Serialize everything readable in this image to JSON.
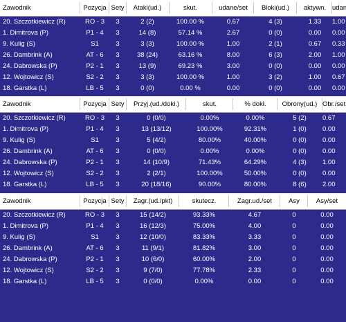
{
  "colors": {
    "background": "#2d2a8c",
    "header_bg": "#ffffff",
    "text": "#ffffff"
  },
  "attack": {
    "headers": [
      "Zawodnik",
      "Pozycja",
      "Sety",
      "Ataki(ud.)",
      "skut.",
      "udane/set",
      "Bloki(ud.)",
      "aktywn.",
      "udane/set"
    ],
    "rows": [
      [
        "20. Szczotkiewicz (R)",
        "RO - 3",
        "3",
        "2 (2)",
        "100.00 %",
        "0.67",
        "4 (3)",
        "1.33",
        "1.00"
      ],
      [
        "1. Dimitrova (P)",
        "P1 - 4",
        "3",
        "14 (8)",
        "57.14 %",
        "2.67",
        "0 (0)",
        "0.00",
        "0.00"
      ],
      [
        "9. Kulig (S)",
        "S1",
        "3",
        "3 (3)",
        "100.00 %",
        "1.00",
        "2 (1)",
        "0.67",
        "0.33"
      ],
      [
        "26. Dambrink (A)",
        "AT - 6",
        "3",
        "38 (24)",
        "63.16 %",
        "8.00",
        "6 (3)",
        "2.00",
        "1.00"
      ],
      [
        "24. Dabrowska (P)",
        "P2 - 1",
        "3",
        "13 (9)",
        "69.23 %",
        "3.00",
        "0 (0)",
        "0.00",
        "0.00"
      ],
      [
        "12. Wojtowicz (S)",
        "S2 - 2",
        "3",
        "3 (3)",
        "100.00 %",
        "1.00",
        "3 (2)",
        "1.00",
        "0.67"
      ],
      [
        "18. Garstka (L)",
        "LB - 5",
        "3",
        "0 (0)",
        "0.00 %",
        "0.00",
        "0 (0)",
        "0.00",
        "0.00"
      ]
    ]
  },
  "reception": {
    "headers": [
      "Zawodnik",
      "Pozycja",
      "Sety",
      "Przyj.(ud./dokł.)",
      "skut.",
      "% dokł.",
      "Obrony(ud.)",
      "Obr./set"
    ],
    "rows": [
      [
        "20. Szczotkiewicz (R)",
        "RO - 3",
        "3",
        "0 (0/0)",
        "0.00%",
        "0.00%",
        "5 (2)",
        "0.67"
      ],
      [
        "1. Dimitrova (P)",
        "P1 - 4",
        "3",
        "13 (13/12)",
        "100.00%",
        "92.31%",
        "1 (0)",
        "0.00"
      ],
      [
        "9. Kulig (S)",
        "S1",
        "3",
        "5 (4/2)",
        "80.00%",
        "40.00%",
        "0 (0)",
        "0.00"
      ],
      [
        "26. Dambrink (A)",
        "AT - 6",
        "3",
        "0 (0/0)",
        "0.00%",
        "0.00%",
        "0 (0)",
        "0.00"
      ],
      [
        "24. Dabrowska (P)",
        "P2 - 1",
        "3",
        "14 (10/9)",
        "71.43%",
        "64.29%",
        "4 (3)",
        "1.00"
      ],
      [
        "12. Wojtowicz (S)",
        "S2 - 2",
        "3",
        "2 (2/1)",
        "100.00%",
        "50.00%",
        "0 (0)",
        "0.00"
      ],
      [
        "18. Garstka (L)",
        "LB - 5",
        "3",
        "20 (18/16)",
        "90.00%",
        "80.00%",
        "8 (6)",
        "2.00"
      ]
    ]
  },
  "serve": {
    "headers": [
      "Zawodnik",
      "Pozycja",
      "Sety",
      "Zagr.(ud./pkt)",
      "skutecz.",
      "Zagr.ud./set",
      "Asy",
      "Asy/set"
    ],
    "rows": [
      [
        "20. Szczotkiewicz (R)",
        "RO - 3",
        "3",
        "15 (14/2)",
        "93.33%",
        "4.67",
        "0",
        "0.00"
      ],
      [
        "1. Dimitrova (P)",
        "P1 - 4",
        "3",
        "16 (12/3)",
        "75.00%",
        "4.00",
        "0",
        "0.00"
      ],
      [
        "9. Kulig (S)",
        "S1",
        "3",
        "12 (10/0)",
        "83.33%",
        "3.33",
        "0",
        "0.00"
      ],
      [
        "26. Dambrink (A)",
        "AT - 6",
        "3",
        "11 (9/1)",
        "81.82%",
        "3.00",
        "0",
        "0.00"
      ],
      [
        "24. Dabrowska (P)",
        "P2 - 1",
        "3",
        "10 (6/0)",
        "60.00%",
        "2.00",
        "0",
        "0.00"
      ],
      [
        "12. Wojtowicz (S)",
        "S2 - 2",
        "3",
        "9 (7/0)",
        "77.78%",
        "2.33",
        "0",
        "0.00"
      ],
      [
        "18. Garstka (L)",
        "LB - 5",
        "3",
        "0 (0/0)",
        "0.00%",
        "0.00",
        "0",
        "0.00"
      ]
    ]
  }
}
